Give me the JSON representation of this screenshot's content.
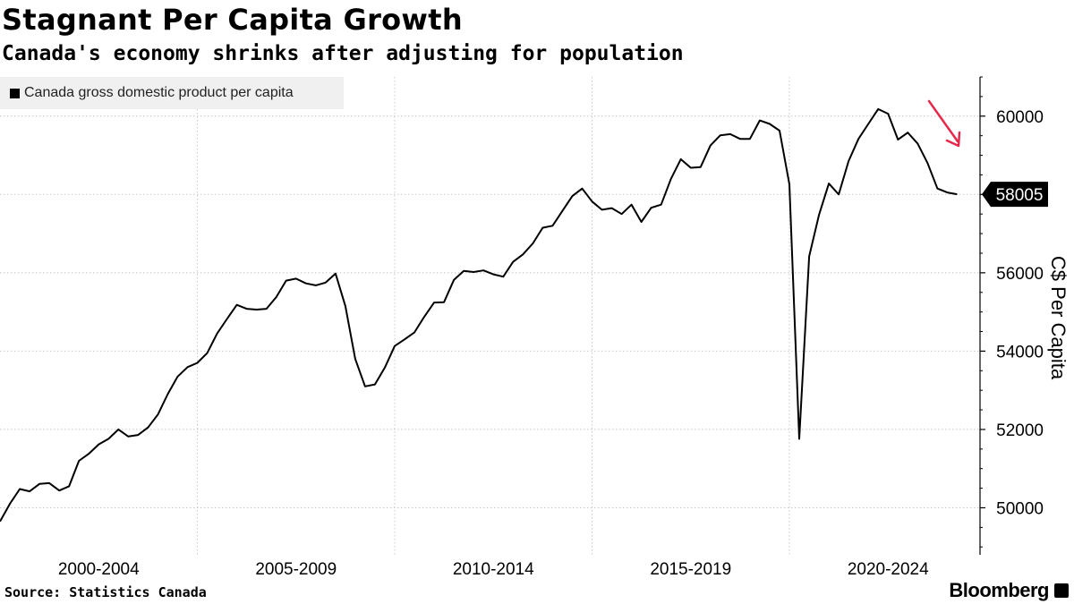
{
  "header": {
    "title": "Stagnant Per Capita Growth",
    "subtitle": "Canada's economy shrinks after adjusting for population"
  },
  "legend": {
    "label": "Canada gross domestic product per capita",
    "color": "#000000"
  },
  "footer": {
    "source": "Source: Statistics Canada",
    "brand": "Bloomberg"
  },
  "colors": {
    "line": "#000000",
    "grid": "#c8c8c8",
    "arrow": "#e8284a",
    "last_bg": "#000000"
  },
  "chart_data": {
    "type": "line",
    "title": "Stagnant Per Capita Growth",
    "subtitle": "Canada's economy shrinks after adjusting for population",
    "ylabel": "C$ Per Capita",
    "xlabel": "",
    "ylim": [
      48800,
      61000
    ],
    "y_ticks": [
      50000,
      52000,
      54000,
      56000,
      58000,
      60000
    ],
    "x_tick_labels": [
      "2000-2004",
      "2005-2009",
      "2010-2014",
      "2015-2019",
      "2020-2024"
    ],
    "x_start": 2000.0,
    "x_step": 0.25,
    "last_value_label": "58005",
    "grid": true,
    "legend_position": "top-left",
    "series": [
      {
        "name": "Canada gross domestic product per capita",
        "values": [
          49650,
          50100,
          50480,
          50420,
          50610,
          50630,
          50440,
          50550,
          51200,
          51380,
          51620,
          51760,
          52000,
          51820,
          51860,
          52050,
          52380,
          52900,
          53350,
          53590,
          53700,
          53950,
          54450,
          54820,
          55180,
          55080,
          55060,
          55080,
          55380,
          55800,
          55850,
          55730,
          55680,
          55750,
          55980,
          55150,
          53800,
          53100,
          53150,
          53580,
          54130,
          54300,
          54480,
          54880,
          55240,
          55250,
          55820,
          56050,
          56020,
          56060,
          55960,
          55900,
          56280,
          56470,
          56750,
          57150,
          57200,
          57580,
          57960,
          58150,
          57820,
          57610,
          57650,
          57500,
          57740,
          57300,
          57660,
          57740,
          58400,
          58900,
          58680,
          58700,
          59250,
          59510,
          59540,
          59420,
          59420,
          59890,
          59800,
          59630,
          58260,
          51760,
          56420,
          57480,
          58280,
          58000,
          58850,
          59420,
          59800,
          60180,
          60060,
          59400,
          59580,
          59300,
          58800,
          58150,
          58050,
          58005
        ]
      }
    ]
  }
}
